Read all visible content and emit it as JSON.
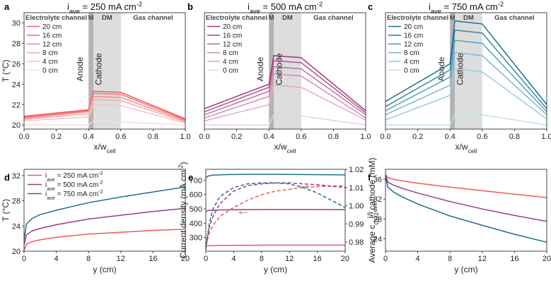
{
  "chart_data": [
    {
      "type": "line",
      "panel": "a",
      "title": "i_ave = 250 mA cm-2",
      "title_main": "i",
      "title_sub": "ave",
      "title_rest": " = 250 mA cm",
      "title_sup": "-2",
      "xlabel": "x/w_cell",
      "xlabel_main": "x/w",
      "xlabel_sub": "cell",
      "ylabel": "T (°C)",
      "xlim": [
        0,
        1
      ],
      "ylim": [
        19.6,
        31
      ],
      "xticks": [
        "0.0",
        "0.2",
        "0.4",
        "0.6",
        "0.8",
        "1.0"
      ],
      "yticks": [
        "20",
        "22",
        "24",
        "26",
        "28",
        "30"
      ],
      "regions": [
        "Electrolyte channel",
        "M",
        "DM",
        "Gas channel"
      ],
      "annotations": [
        "Anode",
        "Cathode"
      ],
      "legend": [
        "20 cm",
        "16 cm",
        "12 cm",
        "8 cm",
        "4 cm",
        "0 cm"
      ],
      "colors": [
        "#ee5a5a",
        "#f17575",
        "#f48f8f",
        "#f6a9a9",
        "#f9c3c3",
        "#fbdddd"
      ],
      "series": [
        {
          "name": "20 cm",
          "x": [
            0,
            0.4,
            0.43,
            0.6,
            1.0
          ],
          "y": [
            20.85,
            21.5,
            23.3,
            23.2,
            20.6
          ]
        },
        {
          "name": "16 cm",
          "x": [
            0,
            0.4,
            0.43,
            0.6,
            1.0
          ],
          "y": [
            20.75,
            21.4,
            23.1,
            23.0,
            20.5
          ]
        },
        {
          "name": "12 cm",
          "x": [
            0,
            0.4,
            0.43,
            0.6,
            1.0
          ],
          "y": [
            20.65,
            21.3,
            22.8,
            22.7,
            20.4
          ]
        },
        {
          "name": "8 cm",
          "x": [
            0,
            0.4,
            0.43,
            0.6,
            1.0
          ],
          "y": [
            20.55,
            21.1,
            22.5,
            22.4,
            20.3
          ]
        },
        {
          "name": "4 cm",
          "x": [
            0,
            0.4,
            0.43,
            0.6,
            1.0
          ],
          "y": [
            20.4,
            20.8,
            22.0,
            21.9,
            20.2
          ]
        },
        {
          "name": "0 cm",
          "x": [
            0,
            0.4,
            0.43,
            0.6,
            1.0
          ],
          "y": [
            20.0,
            20.0,
            20.4,
            20.3,
            20.0
          ]
        }
      ]
    },
    {
      "type": "line",
      "panel": "b",
      "title": "i_ave = 500 mA cm-2",
      "title_main": "i",
      "title_sub": "ave",
      "title_rest": " = 500 mA cm",
      "title_sup": "-2",
      "xlabel": "x/w_cell",
      "xlabel_main": "x/w",
      "xlabel_sub": "cell",
      "ylabel": "",
      "xlim": [
        0,
        1
      ],
      "ylim": [
        19.6,
        31
      ],
      "xticks": [
        "0.0",
        "0.2",
        "0.4",
        "0.6",
        "0.8",
        "1.0"
      ],
      "yticks": [],
      "regions": [
        "Electrolyte channel",
        "M",
        "DM",
        "Gas channel"
      ],
      "annotations": [
        "Anode",
        "Cathode"
      ],
      "legend": [
        "20 cm",
        "16 cm",
        "12 cm",
        "8 cm",
        "4 cm",
        "0 cm"
      ],
      "colors": [
        "#a1357c",
        "#b2528f",
        "#c270a3",
        "#d08fb7",
        "#deaecb",
        "#eccfe0"
      ],
      "series": [
        {
          "name": "20 cm",
          "x": [
            0,
            0.4,
            0.43,
            0.6,
            1.0
          ],
          "y": [
            21.6,
            24.0,
            26.8,
            26.6,
            21.4
          ]
        },
        {
          "name": "16 cm",
          "x": [
            0,
            0.4,
            0.43,
            0.6,
            1.0
          ],
          "y": [
            21.3,
            23.7,
            26.3,
            26.1,
            21.2
          ]
        },
        {
          "name": "12 cm",
          "x": [
            0,
            0.4,
            0.43,
            0.6,
            1.0
          ],
          "y": [
            21.0,
            23.3,
            25.7,
            25.5,
            21.0
          ]
        },
        {
          "name": "8 cm",
          "x": [
            0,
            0.4,
            0.43,
            0.6,
            1.0
          ],
          "y": [
            20.7,
            22.8,
            25.0,
            24.8,
            20.7
          ]
        },
        {
          "name": "4 cm",
          "x": [
            0,
            0.4,
            0.43,
            0.6,
            1.0
          ],
          "y": [
            20.4,
            22.0,
            23.9,
            23.7,
            20.5
          ]
        },
        {
          "name": "0 cm",
          "x": [
            0,
            0.4,
            0.43,
            0.6,
            1.0
          ],
          "y": [
            20.0,
            20.0,
            21.0,
            20.9,
            20.0
          ]
        }
      ]
    },
    {
      "type": "line",
      "panel": "c",
      "title": "i_ave = 750 mA cm-2",
      "title_main": "i",
      "title_sub": "ave",
      "title_rest": " = 750 mA cm",
      "title_sup": "-2",
      "xlabel": "x/w_cell",
      "xlabel_main": "x/w",
      "xlabel_sub": "cell",
      "ylabel": "",
      "xlim": [
        0,
        1
      ],
      "ylim": [
        19.6,
        31
      ],
      "xticks": [
        "0.0",
        "0.2",
        "0.4",
        "0.6",
        "0.8",
        "1.0"
      ],
      "yticks": [],
      "regions": [
        "Electrolyte channel",
        "M",
        "DM",
        "Gas channel"
      ],
      "annotations": [
        "Anode",
        "Cathode"
      ],
      "legend": [
        "20 cm",
        "16 cm",
        "12 cm",
        "8 cm",
        "4 cm",
        "0 cm"
      ],
      "colors": [
        "#1f6f8b",
        "#3a87a3",
        "#5a9fbb",
        "#7bb7d0",
        "#9ccde2",
        "#bfe0ee"
      ],
      "series": [
        {
          "name": "20 cm",
          "x": [
            0,
            0.4,
            0.43,
            0.6,
            1.0
          ],
          "y": [
            22.3,
            26.0,
            30.2,
            29.9,
            22.0
          ]
        },
        {
          "name": "16 cm",
          "x": [
            0,
            0.4,
            0.43,
            0.6,
            1.0
          ],
          "y": [
            21.8,
            25.4,
            29.3,
            29.0,
            21.6
          ]
        },
        {
          "name": "12 cm",
          "x": [
            0,
            0.4,
            0.43,
            0.6,
            1.0
          ],
          "y": [
            21.4,
            24.7,
            28.3,
            28.0,
            21.3
          ]
        },
        {
          "name": "8 cm",
          "x": [
            0,
            0.4,
            0.43,
            0.6,
            1.0
          ],
          "y": [
            21.0,
            23.9,
            27.1,
            26.8,
            21.0
          ]
        },
        {
          "name": "4 cm",
          "x": [
            0,
            0.4,
            0.43,
            0.6,
            1.0
          ],
          "y": [
            20.5,
            22.9,
            25.5,
            25.2,
            20.6
          ]
        },
        {
          "name": "0 cm",
          "x": [
            0,
            0.4,
            0.43,
            0.6,
            1.0
          ],
          "y": [
            20.0,
            20.0,
            21.1,
            21.0,
            20.0
          ]
        }
      ]
    },
    {
      "type": "line",
      "panel": "d",
      "title": "",
      "xlabel": "y (cm)",
      "ylabel": "T (°C)",
      "xlim": [
        0,
        20
      ],
      "ylim": [
        20,
        33
      ],
      "xticks": [
        "0",
        "4",
        "8",
        "12",
        "16",
        "20"
      ],
      "yticks": [
        "20",
        "24",
        "28",
        "32"
      ],
      "legend": [
        "i_ave = 250 mA cm-2",
        "i_ave = 500 mA cm-2",
        "i_ave = 750 mA cm-2"
      ],
      "legend_parts": [
        {
          "main": "i",
          "sub": "ave",
          "rest": " = 250 mA cm",
          "sup": "-2"
        },
        {
          "main": "i",
          "sub": "ave",
          "rest": " = 500 mA cm",
          "sup": "-2"
        },
        {
          "main": "i",
          "sub": "ave",
          "rest": " = 750 mA cm",
          "sup": "-2"
        }
      ],
      "colors": [
        "#ee5a5a",
        "#9b3a86",
        "#1f6f8b"
      ],
      "series": [
        {
          "name": "250 mA cm-2",
          "x": [
            0,
            0.3,
            1,
            2,
            4,
            8,
            12,
            16,
            20
          ],
          "y": [
            20.2,
            21.1,
            21.5,
            21.8,
            22.2,
            22.7,
            23.0,
            23.3,
            23.5
          ]
        },
        {
          "name": "500 mA cm-2",
          "x": [
            0,
            0.3,
            1,
            2,
            4,
            8,
            12,
            16,
            20
          ],
          "y": [
            21.0,
            22.6,
            23.2,
            23.6,
            24.2,
            25.1,
            25.7,
            26.3,
            26.8
          ]
        },
        {
          "name": "750 mA cm-2",
          "x": [
            0,
            0.3,
            1,
            2,
            4,
            8,
            12,
            16,
            20
          ],
          "y": [
            21.8,
            24.3,
            25.2,
            25.8,
            26.5,
            27.7,
            28.6,
            29.4,
            30.2
          ]
        }
      ]
    },
    {
      "type": "line",
      "panel": "e",
      "title": "",
      "xlabel": "y (cm)",
      "ylabel": "Current density (mA cm-2)",
      "ylabel_main": "Current density (mA cm",
      "ylabel_sup": "-2",
      "ylabel_end": ")",
      "y2label": "i/i_ave",
      "y2label_main": "i/i",
      "y2label_sub": "ave",
      "xlim": [
        0,
        20
      ],
      "ylim": [
        205,
        775
      ],
      "y2lim": [
        0.975,
        1.02
      ],
      "xticks": [
        "0",
        "4",
        "8",
        "12",
        "16",
        "20"
      ],
      "yticks": [
        "300",
        "400",
        "500",
        "600",
        "700"
      ],
      "y2ticks": [
        "0.98",
        "0.99",
        "1.00",
        "1.01",
        "1.02"
      ],
      "colors": [
        "#ee5a5a",
        "#9b3a86",
        "#1f6f8b"
      ],
      "series": [
        {
          "name": "250 solid",
          "axis": "left",
          "x": [
            0,
            0.3,
            2,
            5,
            10,
            15,
            20
          ],
          "y": [
            240,
            243,
            245,
            246,
            247,
            247,
            247
          ]
        },
        {
          "name": "500 solid",
          "axis": "left",
          "x": [
            0,
            0.3,
            2,
            5,
            10,
            15,
            20
          ],
          "y": [
            480,
            488,
            492,
            494,
            495,
            495,
            494
          ]
        },
        {
          "name": "750 solid",
          "axis": "left",
          "x": [
            0,
            0.3,
            1,
            3,
            6,
            10,
            15,
            20
          ],
          "y": [
            715,
            728,
            734,
            738,
            740,
            740,
            738,
            736
          ]
        },
        {
          "name": "250 dashed",
          "axis": "right",
          "dashed": true,
          "x": [
            0,
            0.5,
            1,
            2,
            4,
            6,
            8,
            10,
            12,
            14,
            16,
            20
          ],
          "y": [
            0.978,
            0.985,
            0.989,
            0.994,
            0.999,
            1.003,
            1.006,
            1.008,
            1.009,
            1.01,
            1.0105,
            1.011
          ]
        },
        {
          "name": "500 dashed",
          "axis": "right",
          "dashed": true,
          "x": [
            0,
            0.5,
            1,
            2,
            4,
            6,
            8,
            10,
            12,
            14,
            16,
            20
          ],
          "y": [
            0.978,
            0.988,
            0.994,
            1.001,
            1.008,
            1.011,
            1.012,
            1.0125,
            1.0125,
            1.012,
            1.0115,
            1.01
          ]
        },
        {
          "name": "750 dashed",
          "axis": "right",
          "dashed": true,
          "x": [
            0,
            0.5,
            1,
            2,
            4,
            6,
            8,
            10,
            12,
            14,
            16,
            18,
            20
          ],
          "y": [
            0.976,
            0.99,
            0.998,
            1.005,
            1.01,
            1.012,
            1.0125,
            1.0125,
            1.012,
            1.01,
            1.007,
            1.003,
            0.999
          ]
        }
      ]
    },
    {
      "type": "line",
      "panel": "f",
      "title": "",
      "xlabel": "y (cm)",
      "ylabel": "Average c_CO2 cathode (mM)",
      "ylabel_main": "Average c",
      "ylabel_sub": "CO2",
      "ylabel_end": " cathode (mM)",
      "xlim": [
        0,
        20
      ],
      "ylim": [
        21.5,
        38
      ],
      "xticks": [
        "0",
        "4",
        "8",
        "12",
        "16",
        "20"
      ],
      "yticks": [
        "24",
        "28",
        "32",
        "36"
      ],
      "colors": [
        "#ee5a5a",
        "#9b3a86",
        "#1f6f8b"
      ],
      "series": [
        {
          "name": "250 mA cm-2",
          "x": [
            0,
            0.3,
            1,
            2,
            4,
            8,
            12,
            16,
            20
          ],
          "y": [
            37.0,
            36.3,
            36.0,
            35.7,
            35.2,
            34.4,
            33.7,
            33.0,
            32.3
          ]
        },
        {
          "name": "500 mA cm-2",
          "x": [
            0,
            0.3,
            1,
            2,
            4,
            8,
            12,
            16,
            20
          ],
          "y": [
            36.8,
            35.4,
            34.8,
            34.2,
            33.2,
            31.5,
            30.0,
            28.7,
            27.5
          ]
        },
        {
          "name": "750 mA cm-2",
          "x": [
            0,
            0.3,
            1,
            2,
            4,
            8,
            12,
            16,
            20
          ],
          "y": [
            36.6,
            34.4,
            33.4,
            32.5,
            31.0,
            28.6,
            26.7,
            24.9,
            23.3
          ]
        }
      ]
    }
  ]
}
